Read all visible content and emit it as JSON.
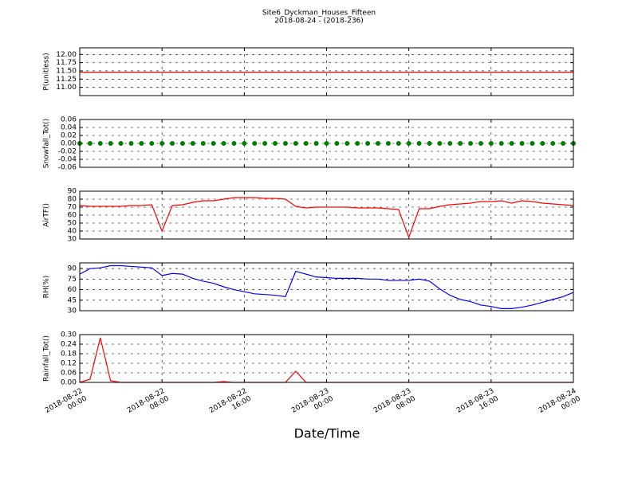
{
  "chart_data": [
    {
      "type": "line",
      "title": "Site6_Dyckman_Houses_Fifteen",
      "subtitle": "2018-08-24 - (2018-236)",
      "ylabel": "P(unitless)",
      "x": [
        "2018-08-22 00:00",
        "2018-08-22 01:00",
        "2018-08-22 02:00",
        "2018-08-22 03:00",
        "2018-08-22 04:00",
        "2018-08-22 05:00",
        "2018-08-22 06:00",
        "2018-08-22 07:00",
        "2018-08-22 08:00",
        "2018-08-22 09:00",
        "2018-08-22 10:00",
        "2018-08-22 11:00",
        "2018-08-22 12:00",
        "2018-08-22 13:00",
        "2018-08-22 14:00",
        "2018-08-22 15:00",
        "2018-08-22 16:00",
        "2018-08-22 17:00",
        "2018-08-22 18:00",
        "2018-08-22 19:00",
        "2018-08-22 20:00",
        "2018-08-22 21:00",
        "2018-08-22 22:00",
        "2018-08-22 23:00",
        "2018-08-23 00:00",
        "2018-08-23 01:00",
        "2018-08-23 02:00",
        "2018-08-23 03:00",
        "2018-08-23 04:00",
        "2018-08-23 05:00",
        "2018-08-23 06:00",
        "2018-08-23 07:00",
        "2018-08-23 08:00",
        "2018-08-23 09:00",
        "2018-08-23 10:00",
        "2018-08-23 11:00",
        "2018-08-23 12:00",
        "2018-08-23 13:00",
        "2018-08-23 14:00",
        "2018-08-23 15:00",
        "2018-08-23 16:00",
        "2018-08-23 17:00",
        "2018-08-23 18:00",
        "2018-08-23 19:00",
        "2018-08-23 20:00",
        "2018-08-23 21:00",
        "2018-08-23 22:00",
        "2018-08-23 23:00",
        "2018-08-24 00:00"
      ],
      "xlim": [
        "2018-08-22 00:00",
        "2018-08-24 00:00"
      ],
      "series": [
        {
          "color": "#ff0000",
          "values": [
            11.46,
            11.46,
            11.46,
            11.46,
            11.46,
            11.46,
            11.46,
            11.46,
            11.46,
            11.46,
            11.46,
            11.46,
            11.46,
            11.46,
            11.46,
            11.46,
            11.46,
            11.46,
            11.46,
            11.46,
            11.46,
            11.46,
            11.46,
            11.46,
            11.46,
            11.46,
            11.46,
            11.46,
            11.46,
            11.46,
            11.46,
            11.46,
            11.46,
            11.46,
            11.46,
            11.46,
            11.46,
            11.46,
            11.46,
            11.46,
            11.46,
            11.46,
            11.46,
            11.46,
            11.46,
            11.46,
            11.46,
            11.46,
            11.46
          ]
        }
      ],
      "ylim": [
        10.75,
        12.2
      ],
      "yticks": [
        {
          "value": 11.0,
          "label": "11.00"
        },
        {
          "value": 11.25,
          "label": "11.25"
        },
        {
          "value": 11.5,
          "label": "11.50"
        },
        {
          "value": 11.75,
          "label": "11.75"
        },
        {
          "value": 12.0,
          "label": "12.00"
        }
      ],
      "grid": true
    },
    {
      "type": "scatter",
      "ylabel": "Snowfall_Tot()",
      "x": [
        "2018-08-22 00:00",
        "2018-08-22 01:00",
        "2018-08-22 02:00",
        "2018-08-22 03:00",
        "2018-08-22 04:00",
        "2018-08-22 05:00",
        "2018-08-22 06:00",
        "2018-08-22 07:00",
        "2018-08-22 08:00",
        "2018-08-22 09:00",
        "2018-08-22 10:00",
        "2018-08-22 11:00",
        "2018-08-22 12:00",
        "2018-08-22 13:00",
        "2018-08-22 14:00",
        "2018-08-22 15:00",
        "2018-08-22 16:00",
        "2018-08-22 17:00",
        "2018-08-22 18:00",
        "2018-08-22 19:00",
        "2018-08-22 20:00",
        "2018-08-22 21:00",
        "2018-08-22 22:00",
        "2018-08-22 23:00",
        "2018-08-23 00:00",
        "2018-08-23 01:00",
        "2018-08-23 02:00",
        "2018-08-23 03:00",
        "2018-08-23 04:00",
        "2018-08-23 05:00",
        "2018-08-23 06:00",
        "2018-08-23 07:00",
        "2018-08-23 08:00",
        "2018-08-23 09:00",
        "2018-08-23 10:00",
        "2018-08-23 11:00",
        "2018-08-23 12:00",
        "2018-08-23 13:00",
        "2018-08-23 14:00",
        "2018-08-23 15:00",
        "2018-08-23 16:00",
        "2018-08-23 17:00",
        "2018-08-23 18:00",
        "2018-08-23 19:00",
        "2018-08-23 20:00",
        "2018-08-23 21:00",
        "2018-08-23 22:00",
        "2018-08-23 23:00",
        "2018-08-24 00:00"
      ],
      "xlim": [
        "2018-08-22 00:00",
        "2018-08-24 00:00"
      ],
      "series": [
        {
          "color": "#008000",
          "values": [
            0,
            0,
            0,
            0,
            0,
            0,
            0,
            0,
            0,
            0,
            0,
            0,
            0,
            0,
            0,
            0,
            0,
            0,
            0,
            0,
            0,
            0,
            0,
            0,
            0,
            0,
            0,
            0,
            0,
            0,
            0,
            0,
            0,
            0,
            0,
            0,
            0,
            0,
            0,
            0,
            0,
            0,
            0,
            0,
            0,
            0,
            0,
            0,
            0
          ]
        }
      ],
      "ylim": [
        -0.06,
        0.06
      ],
      "yticks": [
        {
          "value": -0.06,
          "label": "-0.06"
        },
        {
          "value": -0.04,
          "label": "-0.04"
        },
        {
          "value": -0.02,
          "label": "-0.02"
        },
        {
          "value": 0,
          "label": "0.00"
        },
        {
          "value": 0.02,
          "label": "0.02"
        },
        {
          "value": 0.04,
          "label": "0.04"
        },
        {
          "value": 0.06,
          "label": "0.06"
        }
      ],
      "grid": true
    },
    {
      "type": "line",
      "ylabel": "AirTF()",
      "x": [
        "2018-08-22 00:00",
        "2018-08-22 01:00",
        "2018-08-22 02:00",
        "2018-08-22 03:00",
        "2018-08-22 04:00",
        "2018-08-22 05:00",
        "2018-08-22 06:00",
        "2018-08-22 07:00",
        "2018-08-22 08:00",
        "2018-08-22 09:00",
        "2018-08-22 10:00",
        "2018-08-22 11:00",
        "2018-08-22 12:00",
        "2018-08-22 13:00",
        "2018-08-22 14:00",
        "2018-08-22 15:00",
        "2018-08-22 16:00",
        "2018-08-22 17:00",
        "2018-08-22 18:00",
        "2018-08-22 19:00",
        "2018-08-22 20:00",
        "2018-08-22 21:00",
        "2018-08-22 22:00",
        "2018-08-22 23:00",
        "2018-08-23 00:00",
        "2018-08-23 01:00",
        "2018-08-23 02:00",
        "2018-08-23 03:00",
        "2018-08-23 04:00",
        "2018-08-23 05:00",
        "2018-08-23 06:00",
        "2018-08-23 07:00",
        "2018-08-23 08:00",
        "2018-08-23 09:00",
        "2018-08-23 10:00",
        "2018-08-23 11:00",
        "2018-08-23 12:00",
        "2018-08-23 13:00",
        "2018-08-23 14:00",
        "2018-08-23 15:00",
        "2018-08-23 16:00",
        "2018-08-23 17:00",
        "2018-08-23 18:00",
        "2018-08-23 19:00",
        "2018-08-23 20:00",
        "2018-08-23 21:00",
        "2018-08-23 22:00",
        "2018-08-23 23:00",
        "2018-08-24 00:00"
      ],
      "xlim": [
        "2018-08-22 00:00",
        "2018-08-24 00:00"
      ],
      "series": [
        {
          "color": "#ff0000",
          "values": [
            72,
            71,
            71,
            71,
            71,
            72,
            72,
            73,
            40,
            72,
            73,
            76,
            78,
            78,
            80,
            82,
            82,
            82,
            81,
            81,
            80,
            71,
            69,
            70,
            70,
            70,
            70,
            69,
            69,
            69,
            68,
            67,
            32,
            68,
            68,
            71,
            73,
            74,
            75,
            77,
            77,
            78,
            75,
            78,
            77,
            75,
            74,
            73,
            72
          ]
        }
      ],
      "ylim": [
        30,
        90
      ],
      "yticks": [
        30,
        40,
        50,
        60,
        70,
        80,
        90
      ],
      "grid": true
    },
    {
      "type": "line",
      "ylabel": "RH(%)",
      "x": [
        "2018-08-22 00:00",
        "2018-08-22 01:00",
        "2018-08-22 02:00",
        "2018-08-22 03:00",
        "2018-08-22 04:00",
        "2018-08-22 05:00",
        "2018-08-22 06:00",
        "2018-08-22 07:00",
        "2018-08-22 08:00",
        "2018-08-22 09:00",
        "2018-08-22 10:00",
        "2018-08-22 11:00",
        "2018-08-22 12:00",
        "2018-08-22 13:00",
        "2018-08-22 14:00",
        "2018-08-22 15:00",
        "2018-08-22 16:00",
        "2018-08-22 17:00",
        "2018-08-22 18:00",
        "2018-08-22 19:00",
        "2018-08-22 20:00",
        "2018-08-22 21:00",
        "2018-08-22 22:00",
        "2018-08-22 23:00",
        "2018-08-23 00:00",
        "2018-08-23 01:00",
        "2018-08-23 02:00",
        "2018-08-23 03:00",
        "2018-08-23 04:00",
        "2018-08-23 05:00",
        "2018-08-23 06:00",
        "2018-08-23 07:00",
        "2018-08-23 08:00",
        "2018-08-23 09:00",
        "2018-08-23 10:00",
        "2018-08-23 11:00",
        "2018-08-23 12:00",
        "2018-08-23 13:00",
        "2018-08-23 14:00",
        "2018-08-23 15:00",
        "2018-08-23 16:00",
        "2018-08-23 17:00",
        "2018-08-23 18:00",
        "2018-08-23 19:00",
        "2018-08-23 20:00",
        "2018-08-23 21:00",
        "2018-08-23 22:00",
        "2018-08-23 23:00",
        "2018-08-24 00:00"
      ],
      "xlim": [
        "2018-08-22 00:00",
        "2018-08-24 00:00"
      ],
      "series": [
        {
          "color": "#0000ff",
          "values": [
            82,
            90,
            91,
            94,
            94,
            93,
            92,
            91,
            80,
            83,
            82,
            76,
            72,
            69,
            64,
            60,
            57,
            54,
            53,
            52,
            50,
            86,
            82,
            78,
            77,
            76,
            76,
            76,
            75,
            75,
            73,
            73,
            73,
            75,
            72,
            61,
            52,
            46,
            43,
            38,
            36,
            33,
            33,
            35,
            38,
            42,
            46,
            50,
            56
          ]
        }
      ],
      "ylim": [
        30,
        98
      ],
      "yticks": [
        30,
        45,
        60,
        75,
        90
      ],
      "grid": true
    },
    {
      "type": "line",
      "ylabel": "Rainfall_Tot()",
      "xlabel": "Date/Time",
      "x": [
        "2018-08-22 00:00",
        "2018-08-22 01:00",
        "2018-08-22 02:00",
        "2018-08-22 03:00",
        "2018-08-22 04:00",
        "2018-08-22 05:00",
        "2018-08-22 06:00",
        "2018-08-22 07:00",
        "2018-08-22 08:00",
        "2018-08-22 09:00",
        "2018-08-22 10:00",
        "2018-08-22 11:00",
        "2018-08-22 12:00",
        "2018-08-22 13:00",
        "2018-08-22 14:00",
        "2018-08-22 15:00",
        "2018-08-22 16:00",
        "2018-08-22 17:00",
        "2018-08-22 18:00",
        "2018-08-22 19:00",
        "2018-08-22 20:00",
        "2018-08-22 21:00",
        "2018-08-22 22:00",
        "2018-08-22 23:00",
        "2018-08-23 00:00",
        "2018-08-23 01:00",
        "2018-08-23 02:00",
        "2018-08-23 03:00",
        "2018-08-23 04:00",
        "2018-08-23 05:00",
        "2018-08-23 06:00",
        "2018-08-23 07:00",
        "2018-08-23 08:00",
        "2018-08-23 09:00",
        "2018-08-23 10:00",
        "2018-08-23 11:00",
        "2018-08-23 12:00",
        "2018-08-23 13:00",
        "2018-08-23 14:00",
        "2018-08-23 15:00",
        "2018-08-23 16:00",
        "2018-08-23 17:00",
        "2018-08-23 18:00",
        "2018-08-23 19:00",
        "2018-08-23 20:00",
        "2018-08-23 21:00",
        "2018-08-23 22:00",
        "2018-08-23 23:00",
        "2018-08-24 00:00"
      ],
      "xlim": [
        "2018-08-22 00:00",
        "2018-08-24 00:00"
      ],
      "series": [
        {
          "color": "#ff0000",
          "values": [
            0,
            0.02,
            0.28,
            0.01,
            0,
            0,
            0,
            0,
            0,
            0,
            0,
            0,
            0,
            0,
            0.005,
            0,
            0,
            0,
            0,
            0,
            0,
            0.07,
            0,
            0,
            0,
            0,
            0,
            0,
            0,
            0,
            0,
            0,
            0,
            0,
            0,
            0,
            0,
            0,
            0,
            0,
            0,
            0,
            0,
            0,
            0,
            0,
            0,
            0,
            0
          ]
        }
      ],
      "ylim": [
        0,
        0.3
      ],
      "yticks": [
        {
          "value": 0,
          "label": "0.00"
        },
        {
          "value": 0.06,
          "label": "0.06"
        },
        {
          "value": 0.12,
          "label": "0.12"
        },
        {
          "value": 0.18,
          "label": "0.18"
        },
        {
          "value": 0.24,
          "label": "0.24"
        },
        {
          "value": 0.3,
          "label": "0.30"
        }
      ],
      "xticks": [
        {
          "value": "2018-08-22 00:00",
          "label": "2018-08-22\n00:00"
        },
        {
          "value": "2018-08-22 08:00",
          "label": "2018-08-22\n08:00"
        },
        {
          "value": "2018-08-22 16:00",
          "label": "2018-08-22\n16:00"
        },
        {
          "value": "2018-08-23 00:00",
          "label": "2018-08-23\n00:00"
        },
        {
          "value": "2018-08-23 08:00",
          "label": "2018-08-23\n08:00"
        },
        {
          "value": "2018-08-23 16:00",
          "label": "2018-08-23\n16:00"
        },
        {
          "value": "2018-08-24 00:00",
          "label": "2018-08-24\n00:00"
        }
      ],
      "grid": true
    }
  ]
}
